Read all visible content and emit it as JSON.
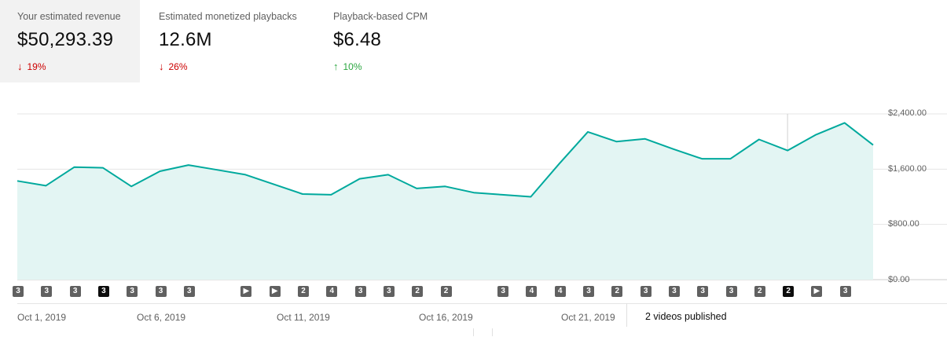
{
  "metrics": [
    {
      "label": "Your estimated revenue",
      "value": "$50,293.39",
      "delta": "19%",
      "direction": "down",
      "selected": true
    },
    {
      "label": "Estimated monetized playbacks",
      "value": "12.6M",
      "delta": "26%",
      "direction": "down",
      "selected": false
    },
    {
      "label": "Playback-based CPM",
      "value": "$6.48",
      "delta": "10%",
      "direction": "up",
      "selected": false
    }
  ],
  "chart_data": {
    "type": "area",
    "x": [
      "Sep 30, 2019",
      "Oct 1, 2019",
      "Oct 2, 2019",
      "Oct 3, 2019",
      "Oct 4, 2019",
      "Oct 5, 2019",
      "Oct 6, 2019",
      "Oct 7, 2019",
      "Oct 8, 2019",
      "Oct 9, 2019",
      "Oct 10, 2019",
      "Oct 11, 2019",
      "Oct 12, 2019",
      "Oct 13, 2019",
      "Oct 14, 2019",
      "Oct 15, 2019",
      "Oct 16, 2019",
      "Oct 17, 2019",
      "Oct 18, 2019",
      "Oct 19, 2019",
      "Oct 20, 2019",
      "Oct 21, 2019",
      "Oct 22, 2019",
      "Oct 23, 2019",
      "Oct 24, 2019",
      "Oct 25, 2019",
      "Oct 26, 2019",
      "Oct 27, 2019",
      "Oct 28, 2019",
      "Oct 29, 2019",
      "Oct 30, 2019"
    ],
    "values": [
      1430,
      1360,
      1630,
      1620,
      1350,
      1570,
      1660,
      1590,
      1520,
      1380,
      1240,
      1230,
      1460,
      1520,
      1320,
      1350,
      1260,
      1230,
      1200,
      1680,
      2140,
      2000,
      2040,
      1890,
      1750,
      1750,
      2030,
      1870,
      2100,
      2270,
      1950
    ],
    "yticks": [
      "$0.00",
      "$800.00",
      "$1,600.00",
      "$2,400.00"
    ],
    "ylim": [
      0,
      2400
    ],
    "xtick_labels": [
      "Oct 1, 2019",
      "Oct 6, 2019",
      "Oct 11, 2019",
      "Oct 16, 2019",
      "Oct 21, 2019"
    ],
    "hover_index": 27,
    "line_color": "#00a99d",
    "fill_color": "#e3f5f3",
    "grid": true
  },
  "markers": [
    {
      "label": "3",
      "day": 0,
      "kind": "count"
    },
    {
      "label": "3",
      "day": 1,
      "kind": "count"
    },
    {
      "label": "3",
      "day": 2,
      "kind": "count"
    },
    {
      "label": "3",
      "day": 3,
      "kind": "count",
      "active": true
    },
    {
      "label": "3",
      "day": 4,
      "kind": "count"
    },
    {
      "label": "3",
      "day": 5,
      "kind": "count"
    },
    {
      "label": "3",
      "day": 6,
      "kind": "count"
    },
    {
      "label": "▶",
      "day": 8,
      "kind": "video"
    },
    {
      "label": "▶",
      "day": 9,
      "kind": "video"
    },
    {
      "label": "2",
      "day": 10,
      "kind": "count"
    },
    {
      "label": "4",
      "day": 11,
      "kind": "count"
    },
    {
      "label": "3",
      "day": 12,
      "kind": "count"
    },
    {
      "label": "3",
      "day": 13,
      "kind": "count"
    },
    {
      "label": "2",
      "day": 14,
      "kind": "count"
    },
    {
      "label": "2",
      "day": 15,
      "kind": "count"
    },
    {
      "label": "3",
      "day": 17,
      "kind": "count"
    },
    {
      "label": "4",
      "day": 18,
      "kind": "count"
    },
    {
      "label": "4",
      "day": 19,
      "kind": "count"
    },
    {
      "label": "3",
      "day": 20,
      "kind": "count"
    },
    {
      "label": "2",
      "day": 21,
      "kind": "count"
    },
    {
      "label": "3",
      "day": 22,
      "kind": "count"
    },
    {
      "label": "3",
      "day": 23,
      "kind": "count"
    },
    {
      "label": "3",
      "day": 24,
      "kind": "count"
    },
    {
      "label": "3",
      "day": 25,
      "kind": "count"
    },
    {
      "label": "2",
      "day": 26,
      "kind": "count"
    },
    {
      "label": "2",
      "day": 27,
      "kind": "count",
      "active": true
    },
    {
      "label": "▶",
      "day": 28,
      "kind": "video"
    },
    {
      "label": "3",
      "day": 29,
      "kind": "count"
    }
  ],
  "published_label": "2 videos published"
}
